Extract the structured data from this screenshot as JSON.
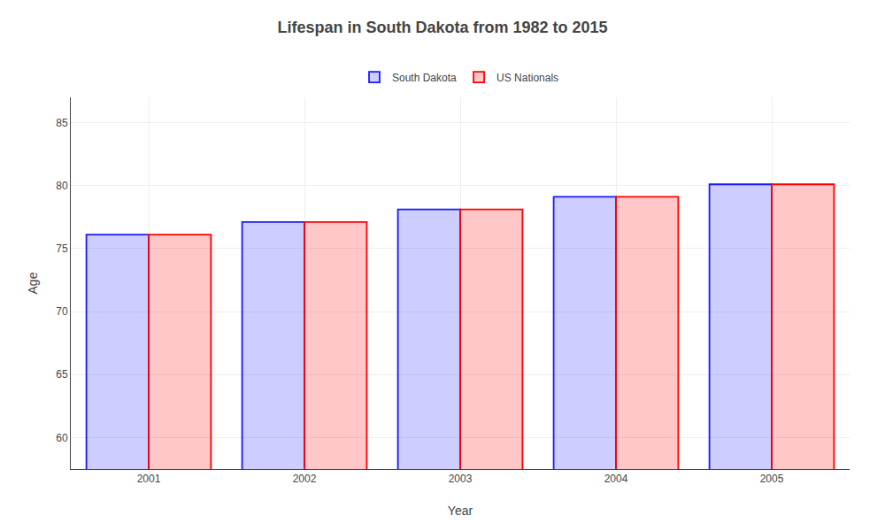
{
  "chart_data": {
    "type": "bar",
    "title": "Lifespan in South Dakota from 1982 to 2015",
    "x_label": "Year",
    "y_label": "Age",
    "categories": [
      "2001",
      "2002",
      "2003",
      "2004",
      "2005"
    ],
    "series": [
      {
        "name": "South Dakota",
        "color": "#1a1aff",
        "values": [
          76.1,
          77.1,
          78.1,
          79.1,
          80.1
        ]
      },
      {
        "name": "US Nationals",
        "color": "#ff0000",
        "values": [
          76.1,
          77.1,
          78.1,
          79.1,
          80.1
        ]
      }
    ],
    "ylim": [
      57.5,
      87
    ],
    "yticks": [
      60,
      65,
      70,
      75,
      80,
      85
    ],
    "grid": true,
    "legend": "top"
  }
}
